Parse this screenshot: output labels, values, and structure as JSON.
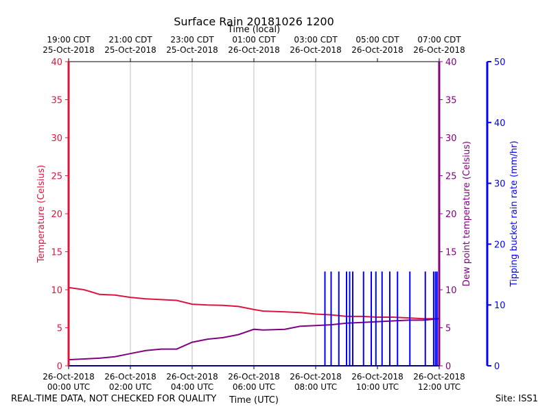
{
  "chart_data": {
    "type": "line",
    "title": "Surface Rain 20181026 1200",
    "top_axis_title": "Time (local)",
    "xlabel": "Time (UTC)",
    "ylabel_left": "Temperature (Celsius)",
    "ylabel_right_inner": "Dew point temperature (Celsius)",
    "ylabel_right_outer": "Tipping bucket rain rate (mm/hr)",
    "x_range_hours": [
      0,
      12
    ],
    "ylim_left": [
      0,
      40
    ],
    "ylim_dewpoint": [
      0,
      40
    ],
    "ylim_rain": [
      0,
      50
    ],
    "left_ticks": [
      "0",
      "5",
      "10",
      "15",
      "20",
      "25",
      "30",
      "35",
      "40"
    ],
    "dewpoint_ticks": [
      "0",
      "5",
      "10",
      "15",
      "20",
      "25",
      "30",
      "35",
      "40"
    ],
    "rain_ticks": [
      "0",
      "10",
      "20",
      "30",
      "40",
      "50"
    ],
    "bottom_ticks": [
      {
        "hour": 0,
        "line1": "26-Oct-2018",
        "line2": "00:00 UTC"
      },
      {
        "hour": 2,
        "line1": "26-Oct-2018",
        "line2": "02:00 UTC"
      },
      {
        "hour": 4,
        "line1": "26-Oct-2018",
        "line2": "04:00 UTC"
      },
      {
        "hour": 6,
        "line1": "26-Oct-2018",
        "line2": "06:00 UTC"
      },
      {
        "hour": 8,
        "line1": "26-Oct-2018",
        "line2": "08:00 UTC"
      },
      {
        "hour": 10,
        "line1": "26-Oct-2018",
        "line2": "10:00 UTC"
      },
      {
        "hour": 12,
        "line1": "26-Oct-2018",
        "line2": "12:00 UTC"
      }
    ],
    "top_ticks": [
      {
        "hour": 0,
        "line1": "19:00 CDT",
        "line2": "25-Oct-2018"
      },
      {
        "hour": 2,
        "line1": "21:00 CDT",
        "line2": "25-Oct-2018"
      },
      {
        "hour": 4,
        "line1": "23:00 CDT",
        "line2": "25-Oct-2018"
      },
      {
        "hour": 6,
        "line1": "01:00 CDT",
        "line2": "26-Oct-2018"
      },
      {
        "hour": 8,
        "line1": "03:00 CDT",
        "line2": "26-Oct-2018"
      },
      {
        "hour": 10,
        "line1": "05:00 CDT",
        "line2": "26-Oct-2018"
      },
      {
        "hour": 12,
        "line1": "07:00 CDT",
        "line2": "26-Oct-2018"
      }
    ],
    "grid_hours": [
      2,
      4,
      6,
      8
    ],
    "series": [
      {
        "name": "Temperature",
        "color": "#dc143c",
        "axis": "left",
        "points": [
          [
            0,
            10.3
          ],
          [
            0.5,
            10.0
          ],
          [
            1.0,
            9.4
          ],
          [
            1.5,
            9.3
          ],
          [
            2.0,
            9.0
          ],
          [
            2.5,
            8.8
          ],
          [
            3.0,
            8.7
          ],
          [
            3.5,
            8.6
          ],
          [
            4.0,
            8.1
          ],
          [
            4.5,
            8.0
          ],
          [
            5.0,
            7.95
          ],
          [
            5.5,
            7.8
          ],
          [
            6.0,
            7.4
          ],
          [
            6.3,
            7.2
          ],
          [
            7.0,
            7.1
          ],
          [
            7.5,
            7.0
          ],
          [
            8.0,
            6.8
          ],
          [
            8.5,
            6.7
          ],
          [
            9.0,
            6.5
          ],
          [
            9.5,
            6.5
          ],
          [
            10.0,
            6.4
          ],
          [
            10.5,
            6.4
          ],
          [
            11.0,
            6.3
          ],
          [
            11.5,
            6.2
          ],
          [
            12.0,
            6.2
          ]
        ]
      },
      {
        "name": "Dew point temperature",
        "color": "#800080",
        "axis": "dewpoint",
        "points": [
          [
            0,
            0.8
          ],
          [
            0.5,
            0.9
          ],
          [
            1.0,
            1.0
          ],
          [
            1.5,
            1.2
          ],
          [
            2.0,
            1.6
          ],
          [
            2.5,
            2.0
          ],
          [
            3.0,
            2.2
          ],
          [
            3.5,
            2.2
          ],
          [
            4.0,
            3.1
          ],
          [
            4.5,
            3.5
          ],
          [
            5.0,
            3.7
          ],
          [
            5.5,
            4.1
          ],
          [
            6.0,
            4.8
          ],
          [
            6.3,
            4.7
          ],
          [
            7.0,
            4.8
          ],
          [
            7.5,
            5.2
          ],
          [
            8.0,
            5.3
          ],
          [
            8.5,
            5.4
          ],
          [
            9.0,
            5.6
          ],
          [
            9.5,
            5.7
          ],
          [
            10.0,
            5.8
          ],
          [
            10.5,
            5.9
          ],
          [
            11.0,
            6.0
          ],
          [
            11.5,
            6.0
          ],
          [
            12.0,
            6.2
          ]
        ]
      },
      {
        "name": "Tipping bucket rain rate",
        "color": "#0000ff",
        "axis": "rain",
        "baseline": 0,
        "spike_value": 15.5,
        "spike_hours": [
          8.3,
          8.5,
          8.75,
          9.0,
          9.1,
          9.2,
          9.55,
          9.8,
          9.95,
          10.15,
          10.4,
          10.65,
          11.05,
          11.55,
          11.82,
          11.88,
          11.93
        ]
      }
    ]
  },
  "footer": {
    "left": "REAL-TIME DATA, NOT CHECKED FOR QUALITY",
    "right": "Site: ISS1"
  }
}
